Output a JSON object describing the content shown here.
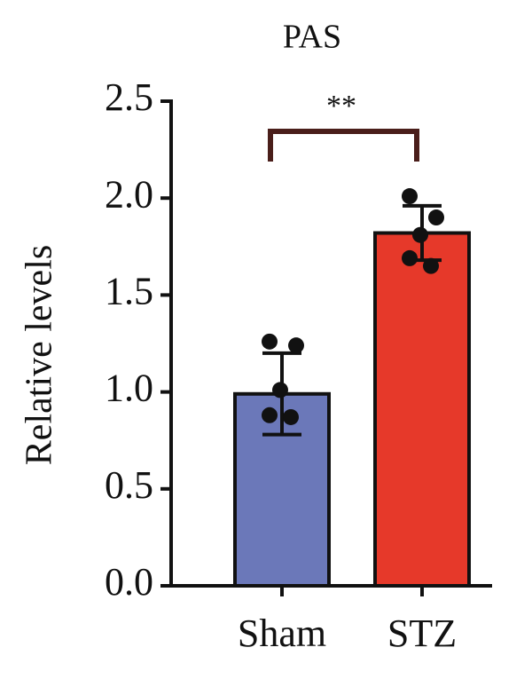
{
  "chart_data": {
    "type": "bar",
    "title": "PAS",
    "y_label": "Relative levels",
    "annotation": "**",
    "categories": [
      "Sham",
      "STZ"
    ],
    "values": [
      0.99,
      1.82
    ],
    "errors": [
      0.21,
      0.14
    ],
    "colors": [
      "#6b78b9",
      "#e6392a"
    ],
    "points": [
      [
        1.26,
        1.24,
        1.01,
        0.88,
        0.87
      ],
      [
        2.01,
        1.9,
        1.81,
        1.69,
        1.65
      ]
    ],
    "ylim": [
      0,
      2.5
    ],
    "yticks": [
      {
        "value": 0,
        "label": "0.0"
      },
      {
        "value": 0.5,
        "label": "0.5"
      },
      {
        "value": 1,
        "label": "1.0"
      },
      {
        "value": 1.5,
        "label": "1.5"
      },
      {
        "value": 2,
        "label": "2.0"
      },
      {
        "value": 2.5,
        "label": "2.5"
      }
    ]
  }
}
